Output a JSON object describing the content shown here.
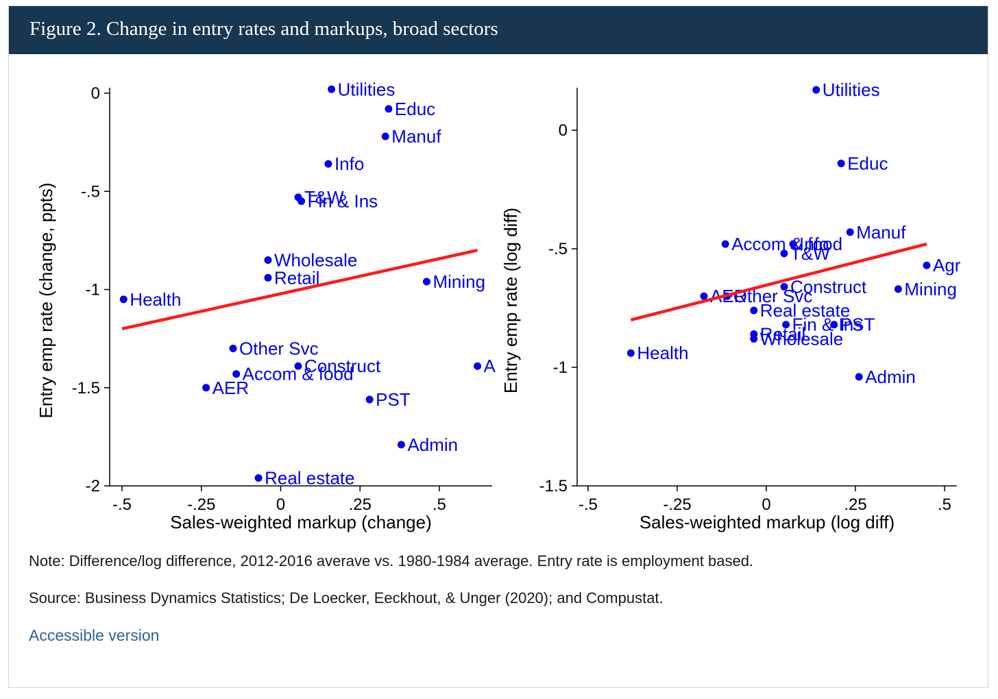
{
  "figure": {
    "title": "Figure 2. Change in entry rates and markups, broad sectors",
    "note": "Note: Difference/log difference, 2012-2016 averave vs. 1980-1984 average. Entry rate is employment based.",
    "source": "Source: Business Dynamics Statistics; De Loecker, Eeckhout, & Unger (2020); and Compustat.",
    "accessible_link": "Accessible version"
  },
  "colors": {
    "points": "#0000ee",
    "fit_line": "#ff1a1a",
    "title_bg": "#17364f",
    "link": "#2a6496"
  },
  "chart_data": [
    {
      "type": "scatter",
      "xlabel": "Sales-weighted markup (change)",
      "ylabel": "Entry emp rate (change, ppts)",
      "xlim": [
        -0.55,
        0.67
      ],
      "ylim": [
        -2,
        0
      ],
      "xticks": [
        -0.5,
        -0.25,
        0,
        0.25,
        0.5
      ],
      "xtick_labels": [
        "-.5",
        "-.25",
        "0",
        ".25",
        ".5"
      ],
      "yticks": [
        0,
        -0.5,
        -1,
        -1.5,
        -2
      ],
      "ytick_labels": [
        "0",
        "-.5",
        "-1",
        "-1.5",
        "-2"
      ],
      "points": [
        {
          "label": "Utilities",
          "x": 0.16,
          "y": 0.02
        },
        {
          "label": "Educ",
          "x": 0.34,
          "y": -0.08
        },
        {
          "label": "Manuf",
          "x": 0.33,
          "y": -0.22
        },
        {
          "label": "Info",
          "x": 0.15,
          "y": -0.36
        },
        {
          "label": "T&W",
          "x": 0.055,
          "y": -0.53
        },
        {
          "label": "Fin & Ins",
          "x": 0.065,
          "y": -0.55
        },
        {
          "label": "Wholesale",
          "x": -0.04,
          "y": -0.85
        },
        {
          "label": "Retail",
          "x": -0.04,
          "y": -0.94
        },
        {
          "label": "Mining",
          "x": 0.46,
          "y": -0.96
        },
        {
          "label": "Health",
          "x": -0.495,
          "y": -1.05
        },
        {
          "label": "Other Svc",
          "x": -0.15,
          "y": -1.3
        },
        {
          "label": "Construct",
          "x": 0.055,
          "y": -1.39
        },
        {
          "label": "Accom & food",
          "x": -0.14,
          "y": -1.43
        },
        {
          "label": "A",
          "x": 0.62,
          "y": -1.39
        },
        {
          "label": "AER",
          "x": -0.235,
          "y": -1.5
        },
        {
          "label": "PST",
          "x": 0.28,
          "y": -1.56
        },
        {
          "label": "Admin",
          "x": 0.38,
          "y": -1.79
        },
        {
          "label": "Real estate",
          "x": -0.07,
          "y": -1.96
        }
      ],
      "fit_line": {
        "x": [
          -0.5,
          0.62
        ],
        "y": [
          -1.2,
          -0.8
        ]
      }
    },
    {
      "type": "scatter",
      "xlabel": "Sales-weighted markup (log diff)",
      "ylabel": "Entry emp rate (log diff)",
      "xlim": [
        -0.54,
        0.54
      ],
      "ylim": [
        -1.5,
        0.18
      ],
      "xticks": [
        -0.5,
        -0.25,
        0,
        0.25,
        0.5
      ],
      "xtick_labels": [
        "-.5",
        "-.25",
        "0",
        ".25",
        ".5"
      ],
      "yticks": [
        0,
        -0.5,
        -1,
        -1.5
      ],
      "ytick_labels": [
        "0",
        "-.5",
        "-1",
        "-1.5"
      ],
      "points": [
        {
          "label": "Utilities",
          "x": 0.14,
          "y": 0.17
        },
        {
          "label": "Educ",
          "x": 0.21,
          "y": -0.14
        },
        {
          "label": "Manuf",
          "x": 0.235,
          "y": -0.43
        },
        {
          "label": "Accom & food",
          "x": -0.115,
          "y": -0.48
        },
        {
          "label": "Info",
          "x": 0.075,
          "y": -0.48
        },
        {
          "label": "T&W",
          "x": 0.05,
          "y": -0.52
        },
        {
          "label": "Agr",
          "x": 0.45,
          "y": -0.57
        },
        {
          "label": "Construct",
          "x": 0.05,
          "y": -0.66
        },
        {
          "label": "Mining",
          "x": 0.37,
          "y": -0.67
        },
        {
          "label": "AER",
          "x": -0.175,
          "y": -0.7
        },
        {
          "label": "Other Svc",
          "x": -0.11,
          "y": -0.7
        },
        {
          "label": "Real estate",
          "x": -0.035,
          "y": -0.76
        },
        {
          "label": "Fin & Ins",
          "x": 0.055,
          "y": -0.82
        },
        {
          "label": "PST",
          "x": 0.19,
          "y": -0.82
        },
        {
          "label": "Retail",
          "x": -0.035,
          "y": -0.86
        },
        {
          "label": "Wholesale",
          "x": -0.035,
          "y": -0.88
        },
        {
          "label": "Health",
          "x": -0.38,
          "y": -0.94
        },
        {
          "label": "Admin",
          "x": 0.26,
          "y": -1.04
        }
      ],
      "fit_line": {
        "x": [
          -0.38,
          0.45
        ],
        "y": [
          -0.8,
          -0.48
        ]
      }
    }
  ]
}
